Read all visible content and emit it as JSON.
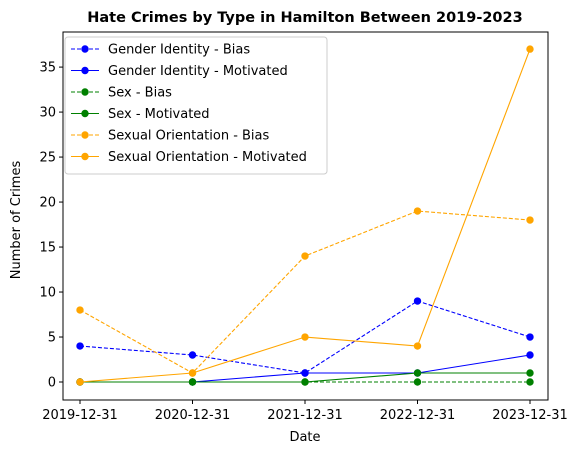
{
  "chart_data": {
    "type": "line",
    "title": "Hate Crimes by Type in Hamilton Between 2019-2023",
    "xlabel": "Date",
    "ylabel": "Number of Crimes",
    "x": [
      "2019-12-31",
      "2020-12-31",
      "2021-12-31",
      "2022-12-31",
      "2023-12-31"
    ],
    "ylim": [
      -2,
      38.9
    ],
    "yticks": [
      0,
      5,
      10,
      15,
      20,
      25,
      30,
      35
    ],
    "grid": false,
    "legend_position": "top-left",
    "series": [
      {
        "name": "Gender Identity - Bias",
        "values": [
          4,
          3,
          1,
          9,
          5
        ],
        "color": "#0000ff",
        "linestyle": "dashed"
      },
      {
        "name": "Gender Identity - Motivated",
        "values": [
          0,
          0,
          1,
          1,
          3
        ],
        "color": "#0000ff",
        "linestyle": "solid"
      },
      {
        "name": "Sex - Bias",
        "values": [
          0,
          0,
          0,
          0,
          0
        ],
        "color": "#008000",
        "linestyle": "dashed"
      },
      {
        "name": "Sex - Motivated",
        "values": [
          0,
          0,
          0,
          1,
          1
        ],
        "color": "#008000",
        "linestyle": "solid"
      },
      {
        "name": "Sexual Orientation - Bias",
        "values": [
          8,
          1,
          14,
          19,
          18
        ],
        "color": "#ffa500",
        "linestyle": "dashed"
      },
      {
        "name": "Sexual Orientation - Motivated",
        "values": [
          0,
          1,
          5,
          4,
          37
        ],
        "color": "#ffa500",
        "linestyle": "solid"
      }
    ]
  }
}
